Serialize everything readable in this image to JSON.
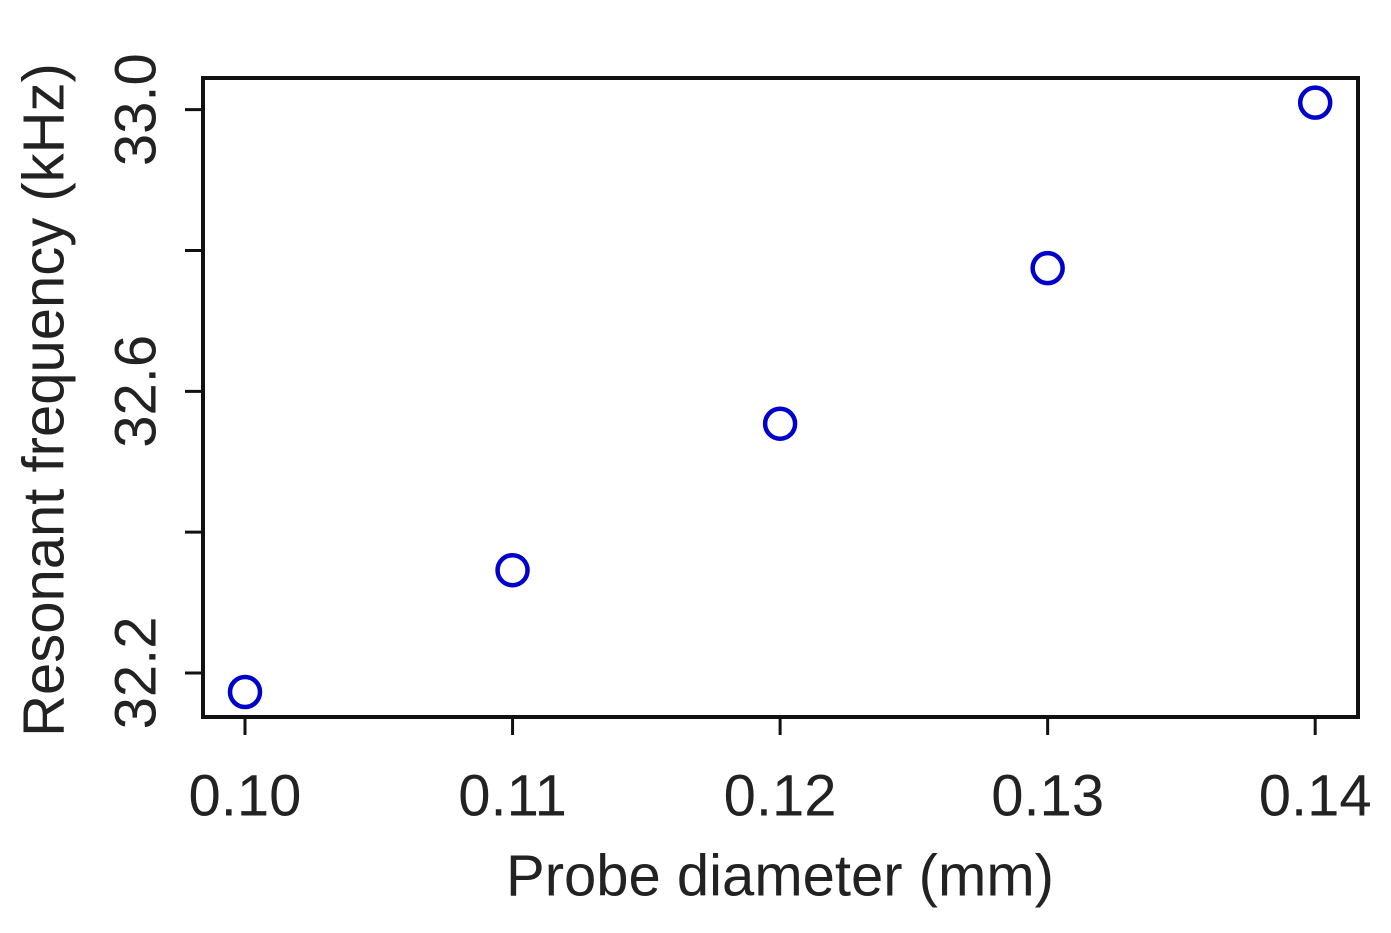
{
  "chart_data": {
    "type": "scatter",
    "x_label": "Probe diameter (mm)",
    "y_label": "Resonant frequency (kHz)",
    "x": [
      0.1,
      0.11,
      0.12,
      0.13,
      0.14
    ],
    "series": [
      {
        "color": "#0000cc",
        "values": [
          32.173,
          32.346,
          32.554,
          32.775,
          33.01
        ]
      }
    ],
    "xlim": [
      0.09843,
      0.1416
    ],
    "ylim": [
      32.1375,
      33.045
    ],
    "xticks": [
      {
        "value": 0.1,
        "label": "0.10"
      },
      0.11,
      0.12,
      0.13,
      0.14
    ],
    "yticks": [
      32.2,
      32.6,
      {
        "value": 33.0,
        "label": "33.0"
      }
    ],
    "yticks_minor": [
      32.4,
      32.8
    ],
    "grid": false
  }
}
